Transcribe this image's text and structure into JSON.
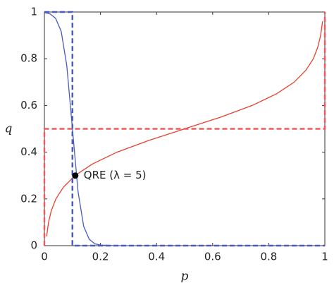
{
  "chart_data": {
    "type": "line",
    "x_label": "p",
    "y_label": "q",
    "xlim": [
      0,
      1
    ],
    "ylim": [
      0,
      1
    ],
    "xticks": [
      0,
      0.2,
      0.4,
      0.6,
      0.8,
      1
    ],
    "yticks": [
      0,
      0.2,
      0.4,
      0.6,
      0.8,
      1
    ],
    "series": [
      {
        "color": "#4a5cc0",
        "dashed": false,
        "x": [
          0,
          0.02,
          0.04,
          0.06,
          0.08,
          0.1,
          0.12,
          0.14,
          0.16,
          0.18,
          0.2,
          0.25,
          0.3
        ],
        "values": [
          0.9975,
          0.992,
          0.973,
          0.917,
          0.769,
          0.5,
          0.231,
          0.083,
          0.027,
          0.008,
          0.0025,
          0.0001,
          0
        ]
      },
      {
        "color": "#e8412c",
        "dashed": false,
        "x": [
          0.008,
          0.0148,
          0.0247,
          0.041,
          0.0676,
          0.109,
          0.172,
          0.259,
          0.372,
          0.5,
          0.628,
          0.741,
          0.828,
          0.891,
          0.932,
          0.959,
          0.975,
          0.985,
          0.992
        ],
        "values": [
          0.04,
          0.1,
          0.15,
          0.2,
          0.25,
          0.3,
          0.35,
          0.4,
          0.45,
          0.5,
          0.55,
          0.6,
          0.65,
          0.7,
          0.75,
          0.8,
          0.85,
          0.9,
          0.96
        ]
      },
      {
        "color": "#4a5cc0",
        "dashed": true,
        "x": [
          0,
          0.1,
          0.1,
          1
        ],
        "values": [
          1,
          1,
          0,
          0
        ]
      },
      {
        "color": "#f05a5a",
        "dashed": true,
        "x": [
          0,
          0,
          1,
          1
        ],
        "values": [
          0,
          0.5,
          0.5,
          1
        ]
      }
    ],
    "point": {
      "x": 0.11,
      "y": 0.3,
      "label": "QRE (λ = 5)",
      "color": "#000000"
    }
  }
}
